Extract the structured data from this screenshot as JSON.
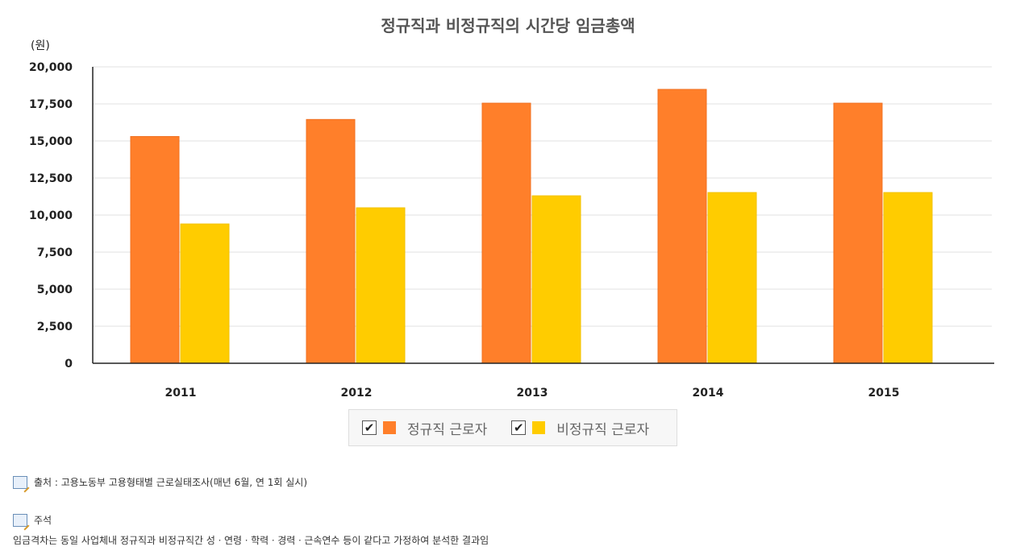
{
  "chart_data": {
    "type": "bar",
    "title": "정규직과 비정규직의 시간당 임금총액",
    "ylabel": "(원)",
    "categories": [
      "2011",
      "2012",
      "2013",
      "2014",
      "2015"
    ],
    "series": [
      {
        "name": "정규직 근로자",
        "color": "#ff7f2a",
        "values": [
          15300,
          16450,
          17550,
          18480,
          17550
        ]
      },
      {
        "name": "비정규직 근로자",
        "color": "#ffcc00",
        "values": [
          9400,
          10490,
          11300,
          11520,
          11520
        ]
      }
    ],
    "ylim": [
      0,
      20000
    ],
    "yticks": [
      "0",
      "2,500",
      "5,000",
      "7,500",
      "10,000",
      "12,500",
      "15,000",
      "17,500",
      "20,000"
    ],
    "grid": true,
    "legend": "bottom"
  },
  "notes": {
    "source": "출처 : 고용노동부 고용형태별 근로실태조사(매년 6월, 연 1회 실시)",
    "note_label": "주석",
    "note_text": "임금격차는 동일 사업체내 정규직과 비정규직간 성ㆍ연령ㆍ학력ㆍ경력ㆍ근속연수 등이 같다고 가정하여 분석한 결과임"
  }
}
